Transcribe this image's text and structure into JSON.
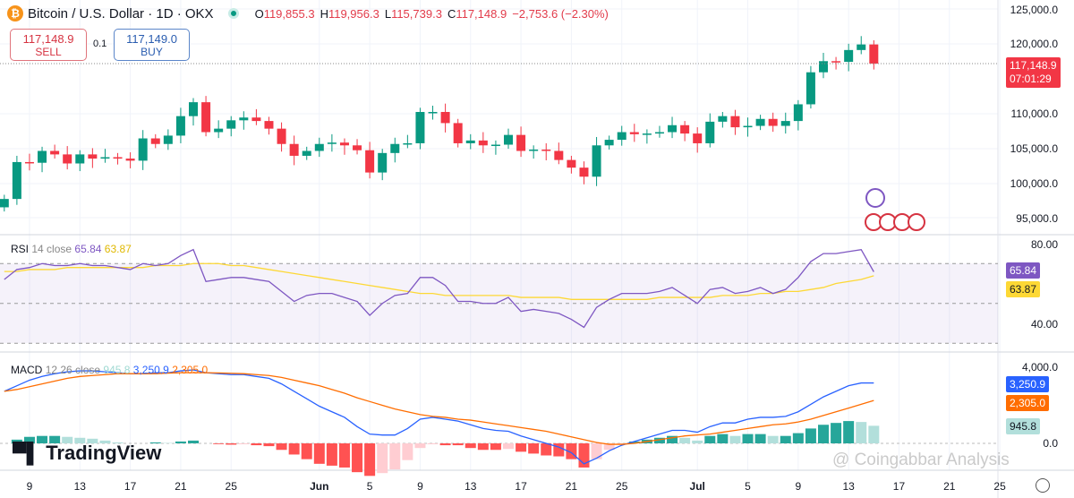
{
  "header": {
    "title": "Bitcoin / U.S. Dollar · 1D · OKX",
    "open": "119,855.3",
    "high": "119,956.3",
    "low": "115,739.3",
    "close": "117,148.9",
    "change": "−2,753.6 (−2.30%)",
    "o": "O",
    "h": "H",
    "l": "L",
    "c": "C"
  },
  "trade": {
    "sell_price": "117,148.9",
    "sell_label": "SELL",
    "spread": "0.1",
    "buy_price": "117,149.0",
    "buy_label": "BUY"
  },
  "price_axis": [
    "125,000.0",
    "120,000.0",
    "110,000.0",
    "105,000.0",
    "100,000.0",
    "95,000.0"
  ],
  "last_price": {
    "value": "117,148.9",
    "countdown": "07:01:29"
  },
  "rsi": {
    "label": "RSI",
    "params": "14 close",
    "value": "65.84",
    "ma_value": "63.87",
    "axis": [
      "80.00",
      "40.00"
    ]
  },
  "macd": {
    "label": "MACD",
    "params": "12 26 close",
    "hist_value": "945.8",
    "macd_value": "3,250.9",
    "signal_value": "2,305.0",
    "axis": [
      "4,000.0",
      "0.0"
    ]
  },
  "time_axis": [
    {
      "label": "9",
      "day": 2
    },
    {
      "label": "13",
      "day": 6
    },
    {
      "label": "17",
      "day": 10
    },
    {
      "label": "21",
      "day": 14
    },
    {
      "label": "25",
      "day": 18
    },
    {
      "label": "Jun",
      "day": 25
    },
    {
      "label": "5",
      "day": 29
    },
    {
      "label": "9",
      "day": 33
    },
    {
      "label": "13",
      "day": 37
    },
    {
      "label": "17",
      "day": 41
    },
    {
      "label": "21",
      "day": 45
    },
    {
      "label": "25",
      "day": 49
    },
    {
      "label": "Jul",
      "day": 55
    },
    {
      "label": "5",
      "day": 59
    },
    {
      "label": "9",
      "day": 63
    },
    {
      "label": "13",
      "day": 67
    },
    {
      "label": "17",
      "day": 71
    },
    {
      "label": "21",
      "day": 75
    },
    {
      "label": "25",
      "day": 79
    }
  ],
  "logo": "TradingView",
  "watermark": "@ Coingabbar Analysis",
  "colors": {
    "up": "#089981",
    "down": "#f23645",
    "rsi": "#7e57c2",
    "rsi_ma": "#fdd835",
    "macd": "#2962ff",
    "signal": "#ff6d00"
  },
  "chart_data": {
    "type": "candlestick",
    "start": "May 7",
    "ylim": [
      93000,
      126000
    ],
    "closes": [
      97700,
      103000,
      102900,
      104600,
      104100,
      102800,
      104100,
      103500,
      103700,
      103500,
      103200,
      106400,
      105600,
      106800,
      109600,
      111600,
      107300,
      107800,
      109000,
      109400,
      108900,
      107800,
      105600,
      103900,
      104600,
      105600,
      105800,
      105400,
      104700,
      101500,
      104300,
      105600,
      105700,
      110200,
      110200,
      108600,
      105700,
      106100,
      105400,
      105500,
      106900,
      104600,
      104800,
      104600,
      103300,
      102200,
      100900,
      105400,
      106200,
      107300,
      107000,
      107100,
      107300,
      108300,
      107100,
      105700,
      108800,
      109600,
      108000,
      108200,
      109200,
      108200,
      108900,
      111300,
      115900,
      117500,
      117400,
      119100,
      119900,
      117148.9
    ],
    "first_open": 96500,
    "rsi": [
      62,
      67,
      68,
      70,
      69,
      69,
      70,
      69,
      69,
      68,
      67,
      70,
      69,
      70,
      74,
      77,
      61,
      62,
      63,
      63,
      62,
      61,
      56,
      51,
      54,
      55,
      55,
      53,
      51,
      44,
      50,
      54,
      55,
      63,
      63,
      59,
      51,
      51,
      50,
      50,
      53,
      46,
      47,
      46,
      45,
      42,
      38,
      48,
      52,
      55,
      55,
      55,
      56,
      58,
      54,
      50,
      57,
      58,
      55,
      56,
      58,
      55,
      57,
      63,
      71,
      75,
      75,
      76,
      77,
      65.84
    ],
    "rsi_ma": [
      66,
      66,
      67,
      67,
      67,
      68,
      68,
      68,
      68,
      68,
      68,
      68,
      69,
      69,
      69,
      70,
      70,
      70,
      69,
      69,
      68,
      67,
      66,
      65,
      64,
      63,
      62,
      61,
      60,
      59,
      58,
      57,
      56,
      55,
      55,
      54,
      54,
      54,
      54,
      54,
      54,
      53,
      53,
      53,
      53,
      52,
      52,
      52,
      52,
      52,
      52,
      52,
      53,
      53,
      53,
      53,
      53,
      54,
      54,
      54,
      55,
      55,
      56,
      56,
      57,
      58,
      60,
      61,
      62,
      63.87
    ],
    "macd": [
      2800,
      3100,
      3400,
      3600,
      3750,
      3850,
      3900,
      3900,
      3850,
      3800,
      3750,
      3750,
      3800,
      3800,
      3900,
      3950,
      3800,
      3750,
      3700,
      3700,
      3600,
      3500,
      3200,
      2800,
      2400,
      2000,
      1700,
      1400,
      900,
      500,
      450,
      450,
      800,
      1300,
      1400,
      1300,
      1200,
      1000,
      800,
      700,
      650,
      400,
      200,
      0,
      -200,
      -500,
      -1100,
      -800,
      -400,
      -100,
      100,
      300,
      500,
      700,
      700,
      600,
      900,
      1100,
      1100,
      1300,
      1400,
      1400,
      1450,
      1700,
      2100,
      2500,
      2800,
      3100,
      3250,
      3250.9
    ],
    "signal": [
      2800,
      2900,
      3050,
      3200,
      3350,
      3500,
      3600,
      3650,
      3700,
      3750,
      3750,
      3750,
      3750,
      3780,
      3800,
      3800,
      3800,
      3790,
      3770,
      3750,
      3700,
      3650,
      3550,
      3400,
      3250,
      3100,
      2900,
      2700,
      2450,
      2250,
      2050,
      1850,
      1700,
      1550,
      1450,
      1400,
      1300,
      1250,
      1150,
      1050,
      950,
      850,
      750,
      650,
      500,
      350,
      200,
      50,
      -50,
      -50,
      0,
      100,
      200,
      300,
      400,
      450,
      500,
      600,
      700,
      800,
      900,
      1000,
      1050,
      1150,
      1300,
      1500,
      1700,
      1900,
      2100,
      2305
    ]
  }
}
